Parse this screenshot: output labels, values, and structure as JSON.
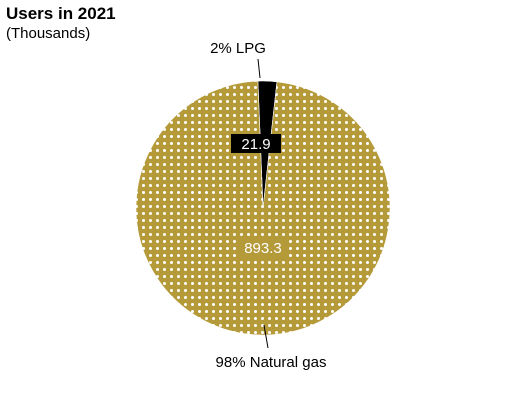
{
  "chart_data": {
    "type": "pie",
    "title": "Users in 2021",
    "subtitle": "(Thousands)",
    "slices": [
      {
        "label": "2% LPG",
        "value": 21.9,
        "value_label": "21.9",
        "color": "#000000"
      },
      {
        "label": "98% Natural gas",
        "value": 893.3,
        "value_label": "893.3",
        "color": "#b59a3a",
        "pattern": "white-dots"
      }
    ]
  }
}
